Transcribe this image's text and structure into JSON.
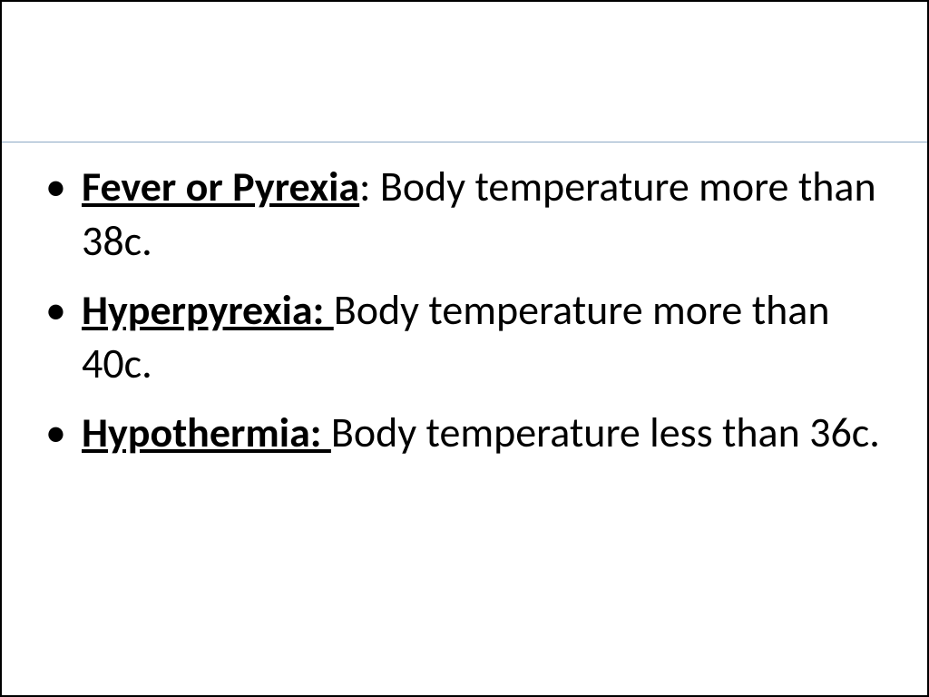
{
  "slide": {
    "background_color": "#ffffff",
    "border_color": "#000000",
    "divider_color": "#8ba8c4",
    "text_color": "#000000",
    "font_size": 46,
    "bullets": [
      {
        "term": "Fever  or Pyrexia",
        "separator": ": ",
        "definition": "Body temperature more than 38c."
      },
      {
        "term": "Hyperpyrexia: ",
        "separator": "",
        "definition": "Body temperature more than 40c."
      },
      {
        "term": "Hypothermia: ",
        "separator": "",
        "definition": "Body temperature less than 36c."
      }
    ]
  }
}
